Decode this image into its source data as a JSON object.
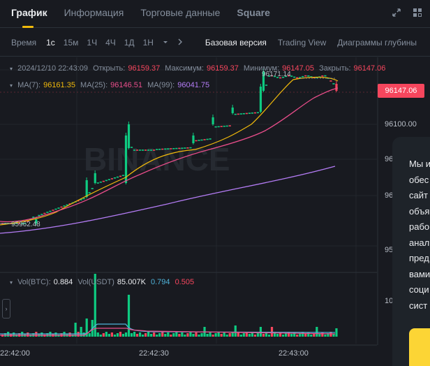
{
  "tabs": [
    {
      "label": "График"
    },
    {
      "label": "Информация"
    },
    {
      "label": "Торговые данные"
    },
    {
      "label": "Square"
    }
  ],
  "toolbar": {
    "time_label": "Время",
    "intervals": [
      "1с",
      "15м",
      "1Ч",
      "4Ч",
      "1Д",
      "1Н"
    ],
    "views": [
      "Базовая версия",
      "Trading View",
      "Диаграммы глубины"
    ]
  },
  "ohlc": {
    "date": "2024/12/10 22:43:09",
    "open_label": "Открыть:",
    "open": "96159.37",
    "high_label": "Максимум:",
    "high": "96159.37",
    "low_label": "Минимум:",
    "low": "96147.05",
    "close_label": "Закрыть:",
    "close": "96147.06"
  },
  "ma": {
    "ma7_label": "MA(7):",
    "ma7": "96161.35",
    "ma25_label": "MA(25):",
    "ma25": "96146.51",
    "ma99_label": "MA(99):",
    "ma99": "96041.75"
  },
  "volume": {
    "btc_label": "Vol(BTC):",
    "btc": "0.884",
    "usdt_label": "Vol(USDT)",
    "usdt": "85.007K",
    "v1": "0.794",
    "v2": "0.505"
  },
  "price_axis": {
    "current": "96147.06",
    "label_100": "96100.00",
    "partial_1": "96",
    "partial_2": "96",
    "partial_3": "95",
    "vol_partial": "10"
  },
  "annotations": {
    "high_mark": "96171.14",
    "low_mark": "95962.48"
  },
  "time_axis": [
    "22:42:00",
    "22:42:30",
    "22:43:00"
  ],
  "watermark": "BINANCE",
  "cookie_lines": [
    "Мы и",
    "обес",
    "сайт",
    "объя",
    "рабо",
    "анал",
    "пред",
    "вами",
    "соци",
    "сист"
  ],
  "colors": {
    "up": "#0ecb81",
    "down": "#f6465d",
    "ma7": "#f0b90b",
    "ma25": "#e84d8a",
    "ma99": "#b47cf5",
    "accent": "#f0b90b"
  },
  "chart_data": {
    "type": "candlestick",
    "ma7_last": 96161.35,
    "ma25_last": 96146.51,
    "ma99_last": 96041.75,
    "current_price": 96147.06,
    "y_tick": 96100.0,
    "high_mark": 96171.14,
    "low_mark": 95962.48
  }
}
